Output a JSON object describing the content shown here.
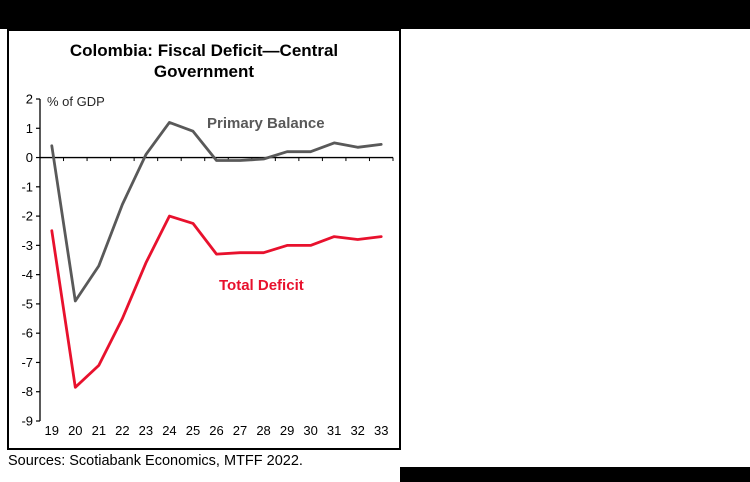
{
  "chart": {
    "title_line1": "Colombia: Fiscal Deficit—Central",
    "title_line2": "Government",
    "unit_label": "% of GDP",
    "primary_label": "Primary Balance",
    "deficit_label": "Total Deficit",
    "source": "Sources: Scotiabank Economics, MTFF 2022."
  },
  "chart_data": {
    "type": "line",
    "title": "Colombia: Fiscal Deficit—Central Government",
    "ylabel": "% of GDP",
    "xlabel": "",
    "categories": [
      "19",
      "20",
      "21",
      "22",
      "23",
      "24",
      "25",
      "26",
      "27",
      "28",
      "29",
      "30",
      "31",
      "32",
      "33"
    ],
    "series": [
      {
        "name": "Primary Balance",
        "color": "#595959",
        "values": [
          0.4,
          -4.9,
          -3.7,
          -1.6,
          0.1,
          1.2,
          0.9,
          -0.1,
          -0.1,
          -0.05,
          0.2,
          0.2,
          0.5,
          0.35,
          0.45
        ]
      },
      {
        "name": "Total Deficit",
        "color": "#E8112D",
        "values": [
          -2.5,
          -7.85,
          -7.1,
          -5.5,
          -3.6,
          -2.0,
          -2.25,
          -3.3,
          -3.25,
          -3.25,
          -3.0,
          -3.0,
          -2.7,
          -2.8,
          -2.7
        ]
      }
    ],
    "ylim": [
      -9,
      2
    ],
    "y_ticks": [
      2,
      1,
      0,
      -1,
      -2,
      -3,
      -4,
      -5,
      -6,
      -7,
      -8,
      -9
    ],
    "grid": false,
    "legend_position": "inline-annotations",
    "annotations": [
      {
        "text": "Primary Balance",
        "color": "#595959"
      },
      {
        "text": "Total Deficit",
        "color": "#E8112D"
      }
    ],
    "source": "Sources: Scotiabank Economics, MTFF 2022."
  }
}
